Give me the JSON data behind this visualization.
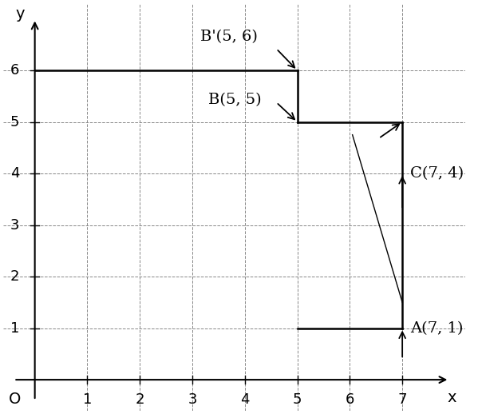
{
  "xlabel": "x",
  "ylabel": "y",
  "xlim": [
    -0.6,
    8.2
  ],
  "ylim": [
    -0.6,
    7.3
  ],
  "grid_x": [
    1,
    2,
    3,
    4,
    5,
    6,
    7
  ],
  "grid_y": [
    1,
    2,
    3,
    4,
    5,
    6
  ],
  "xticks": [
    1,
    2,
    3,
    4,
    5,
    6,
    7
  ],
  "yticks": [
    1,
    2,
    3,
    4,
    5,
    6
  ],
  "origin_label": "O",
  "bg_color": "#ffffff",
  "tick_fontsize": 13,
  "label_fontsize": 14,
  "point_label_fontsize": 14,
  "figsize": [
    5.99,
    5.18
  ],
  "dpi": 100,
  "line_color": "#000000",
  "grid_color": "#888888",
  "grid_linewidth": 0.7,
  "shape_linewidth": 1.8,
  "diag_x1": 6.05,
  "diag_y1": 4.75,
  "diag_x2": 7.0,
  "diag_y2": 1.5
}
